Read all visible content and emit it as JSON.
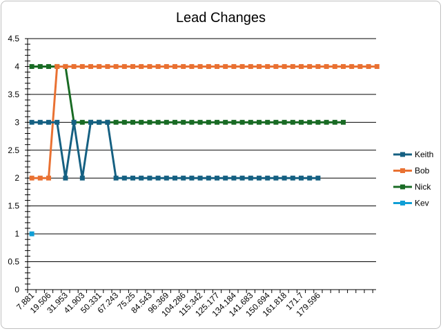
{
  "chart_data": {
    "type": "line",
    "title": "Lead Changes",
    "xlabel": "",
    "ylabel": "",
    "ylim": [
      0,
      4.5
    ],
    "ytick_step": 0.5,
    "grid": "horizontal",
    "legend": "right",
    "x_tick_labels": [
      "7.881",
      "19.506",
      "31.953",
      "41.903",
      "50.331",
      "67.243",
      "75.25",
      "84.543",
      "96.369",
      "104.286",
      "115.342",
      "125.177",
      "134.184",
      "141.683",
      "150.694",
      "161.818",
      "171.7",
      "179.596"
    ],
    "series": [
      {
        "name": "Keith",
        "color": "#156082",
        "values": [
          3,
          3,
          3,
          3,
          2,
          3,
          2,
          3,
          3,
          3,
          2,
          2,
          2,
          2,
          2,
          2,
          2,
          2,
          2,
          2,
          2,
          2,
          2,
          2,
          2,
          2,
          2,
          2,
          2,
          2,
          2,
          2,
          2,
          2,
          2
        ]
      },
      {
        "name": "Bob",
        "color": "#E97132",
        "values": [
          2,
          2,
          2,
          4,
          4,
          4,
          4,
          4,
          4,
          4,
          4,
          4,
          4,
          4,
          4,
          4,
          4,
          4,
          4,
          4,
          4,
          4,
          4,
          4,
          4,
          4,
          4,
          4,
          4,
          4,
          4,
          4,
          4,
          4,
          4,
          4,
          4,
          4,
          4,
          4,
          4,
          4
        ]
      },
      {
        "name": "Nick",
        "color": "#196B24",
        "values": [
          4,
          4,
          4,
          4,
          4,
          3,
          3,
          3,
          3,
          3,
          3,
          3,
          3,
          3,
          3,
          3,
          3,
          3,
          3,
          3,
          3,
          3,
          3,
          3,
          3,
          3,
          3,
          3,
          3,
          3,
          3,
          3,
          3,
          3,
          3,
          3,
          3,
          3
        ]
      },
      {
        "name": "Kev",
        "color": "#0F9ED5",
        "values": [
          1
        ]
      }
    ]
  }
}
